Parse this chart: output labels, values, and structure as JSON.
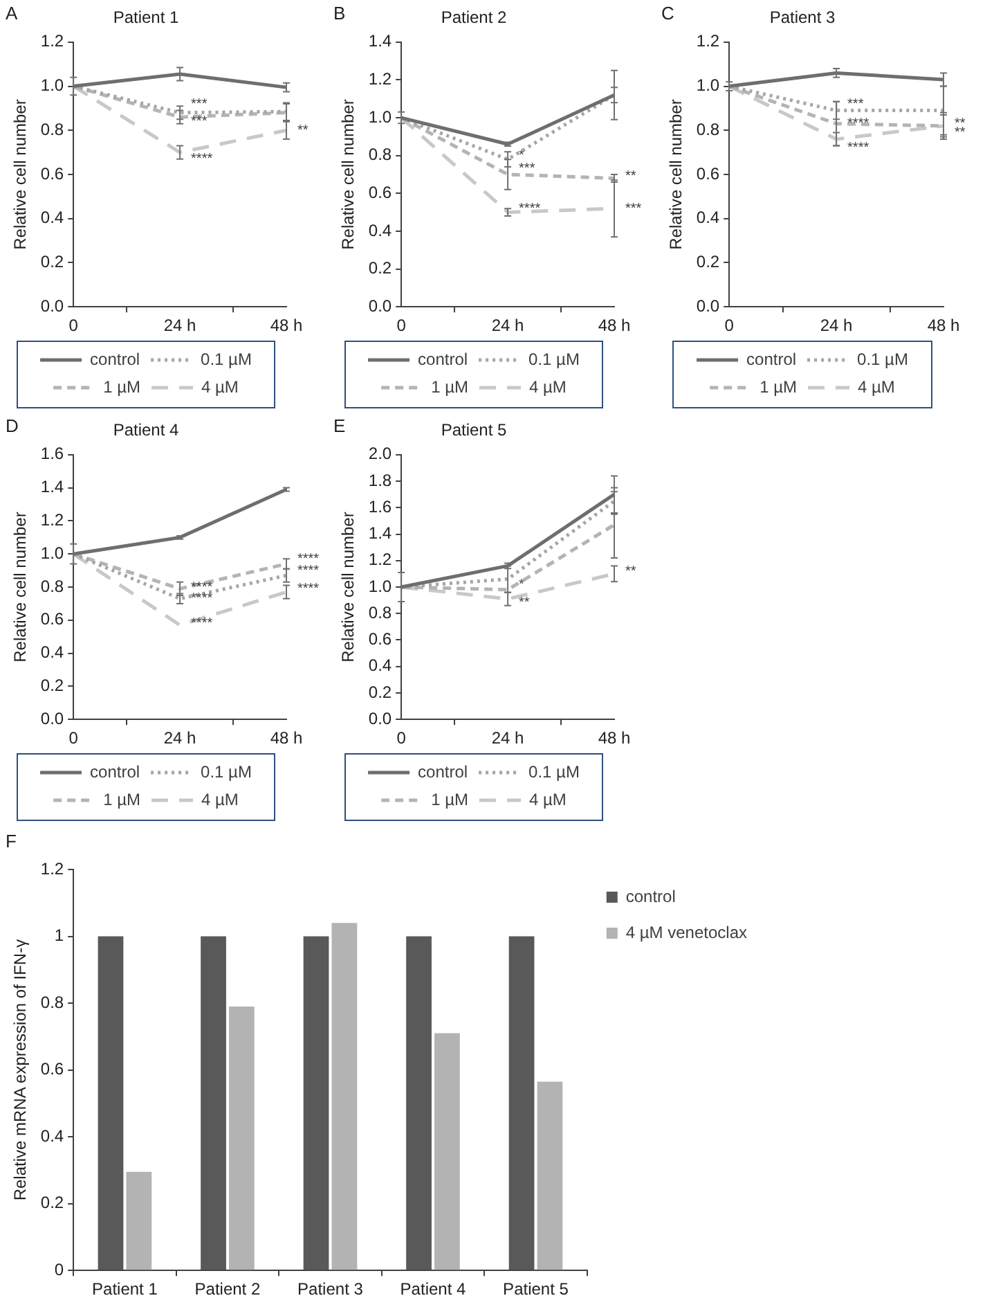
{
  "chart_data": [
    {
      "type": "line",
      "title": "Patient 1",
      "ylabel": "Relative cell number",
      "annotations": [
        "A",
        {
          "text": "***",
          "x": "24 h",
          "y": 0.92
        },
        {
          "text": "***",
          "x": "24 h",
          "y": 0.84
        },
        {
          "text": "****",
          "x": "24 h",
          "y": 0.67
        },
        {
          "text": "**",
          "x": "48 h",
          "y": 0.8
        }
      ],
      "categories": [
        "0",
        "24 h",
        "48 h"
      ],
      "series": [
        {
          "name": "control",
          "color": "#6e6e6e",
          "line_style": "solid",
          "values": [
            1.0,
            1.055,
            0.995
          ],
          "errors": [
            0.04,
            0.03,
            0.02
          ]
        },
        {
          "name": "0.1 µM",
          "color": "#a6a6a6",
          "line_style": "dotted",
          "values": [
            1.0,
            0.88,
            0.885
          ],
          "errors": [
            null,
            0.03,
            0.04
          ]
        },
        {
          "name": "1 µM",
          "color": "#b4b4b4",
          "line_style": "dashed",
          "values": [
            1.0,
            0.86,
            0.88
          ],
          "errors": [
            null,
            0.03,
            0.04
          ]
        },
        {
          "name": "4 µM",
          "color": "#c8c8c8",
          "line_style": "longdash",
          "values": [
            1.0,
            0.7,
            0.8
          ],
          "errors": [
            null,
            0.03,
            0.04
          ]
        }
      ],
      "ylim": [
        0,
        1.2
      ],
      "yticks": [
        {
          "value": 0,
          "label": "0.0"
        },
        {
          "value": 0.2,
          "label": "0.2"
        },
        {
          "value": 0.4,
          "label": "0.4"
        },
        {
          "value": 0.6,
          "label": "0.6"
        },
        {
          "value": 0.8,
          "label": "0.8"
        },
        {
          "value": 1,
          "label": "1.0"
        },
        {
          "value": 1.2,
          "label": "1.2"
        }
      ],
      "legend": "bottom"
    },
    {
      "type": "line",
      "title": "Patient 2",
      "ylabel": "Relative cell number",
      "annotations": [
        "B",
        {
          "text": "*",
          "x": "24 h",
          "y": 0.8
        },
        {
          "text": "***",
          "x": "24 h",
          "y": 0.73
        },
        {
          "text": "****",
          "x": "24 h",
          "y": 0.52
        },
        {
          "text": "**",
          "x": "48 h",
          "y": 0.69
        },
        {
          "text": "***",
          "x": "48 h",
          "y": 0.52
        }
      ],
      "categories": [
        "0",
        "24 h",
        "48 h"
      ],
      "series": [
        {
          "name": "control",
          "color": "#6e6e6e",
          "line_style": "solid",
          "values": [
            1.0,
            0.86,
            1.12
          ],
          "errors": [
            0.03,
            0.01,
            0.13
          ]
        },
        {
          "name": "0.1 µM",
          "color": "#a6a6a6",
          "line_style": "dotted",
          "values": [
            1.0,
            0.78,
            1.12
          ],
          "errors": [
            null,
            0.04,
            0.04
          ]
        },
        {
          "name": "1 µM",
          "color": "#b4b4b4",
          "line_style": "dashed",
          "values": [
            1.0,
            0.7,
            0.68
          ],
          "errors": [
            null,
            0.08,
            0.02
          ]
        },
        {
          "name": "4 µM",
          "color": "#c8c8c8",
          "line_style": "longdash",
          "values": [
            1.0,
            0.5,
            0.52
          ],
          "errors": [
            null,
            0.02,
            0.15
          ]
        }
      ],
      "ylim": [
        0,
        1.4
      ],
      "yticks": [
        {
          "value": 0,
          "label": "0.0"
        },
        {
          "value": 0.2,
          "label": "0.2"
        },
        {
          "value": 0.4,
          "label": "0.4"
        },
        {
          "value": 0.6,
          "label": "0.6"
        },
        {
          "value": 0.8,
          "label": "0.8"
        },
        {
          "value": 1,
          "label": "1.0"
        },
        {
          "value": 1.2,
          "label": "1.2"
        },
        {
          "value": 1.4,
          "label": "1.4"
        }
      ],
      "legend": "bottom"
    },
    {
      "type": "line",
      "title": "Patient 3",
      "ylabel": "Relative cell number",
      "annotations": [
        "C",
        {
          "text": "***",
          "x": "24 h",
          "y": 0.92
        },
        {
          "text": "****",
          "x": "24 h",
          "y": 0.83
        },
        {
          "text": "****",
          "x": "24 h",
          "y": 0.72
        },
        {
          "text": "**",
          "x": "48 h",
          "y": 0.83
        },
        {
          "text": "**",
          "x": "48 h",
          "y": 0.79
        }
      ],
      "categories": [
        "0",
        "24 h",
        "48 h"
      ],
      "series": [
        {
          "name": "control",
          "color": "#6e6e6e",
          "line_style": "solid",
          "values": [
            1.0,
            1.06,
            1.03
          ],
          "errors": [
            0.02,
            0.02,
            0.03
          ]
        },
        {
          "name": "0.1 µM",
          "color": "#a6a6a6",
          "line_style": "dotted",
          "values": [
            1.0,
            0.89,
            0.89
          ],
          "errors": [
            null,
            0.04,
            0.11
          ]
        },
        {
          "name": "1 µM",
          "color": "#b4b4b4",
          "line_style": "dashed",
          "values": [
            1.0,
            0.83,
            0.82
          ],
          "errors": [
            null,
            0.1,
            0.06
          ]
        },
        {
          "name": "4 µM",
          "color": "#c8c8c8",
          "line_style": "longdash",
          "values": [
            1.0,
            0.76,
            0.82
          ],
          "errors": [
            null,
            0.03,
            0.05
          ]
        }
      ],
      "ylim": [
        0,
        1.2
      ],
      "yticks": [
        {
          "value": 0,
          "label": "0.0"
        },
        {
          "value": 0.2,
          "label": "0.2"
        },
        {
          "value": 0.4,
          "label": "0.4"
        },
        {
          "value": 0.6,
          "label": "0.6"
        },
        {
          "value": 0.8,
          "label": "0.8"
        },
        {
          "value": 1,
          "label": "1.0"
        },
        {
          "value": 1.2,
          "label": "1.2"
        }
      ],
      "legend": "bottom"
    },
    {
      "type": "line",
      "title": "Patient 4",
      "ylabel": "Relative cell number",
      "annotations": [
        "D",
        {
          "text": "****",
          "x": "24 h",
          "y": 0.8
        },
        {
          "text": "****",
          "x": "24 h",
          "y": 0.73
        },
        {
          "text": "****",
          "x": "24 h",
          "y": 0.58
        },
        {
          "text": "****",
          "x": "48 h",
          "y": 0.97
        },
        {
          "text": "****",
          "x": "48 h",
          "y": 0.9
        },
        {
          "text": "****",
          "x": "48 h",
          "y": 0.79
        }
      ],
      "categories": [
        "0",
        "24 h",
        "48 h"
      ],
      "series": [
        {
          "name": "control",
          "color": "#6e6e6e",
          "line_style": "solid",
          "values": [
            1.0,
            1.1,
            1.39
          ],
          "errors": [
            0.06,
            0.01,
            0.01
          ]
        },
        {
          "name": "0.1 µM",
          "color": "#a6a6a6",
          "line_style": "dotted",
          "values": [
            1.0,
            0.73,
            0.87
          ],
          "errors": [
            null,
            0.03,
            0.04
          ]
        },
        {
          "name": "1 µM",
          "color": "#b4b4b4",
          "line_style": "dashed",
          "values": [
            1.0,
            0.79,
            0.94
          ],
          "errors": [
            null,
            0.04,
            0.03
          ]
        },
        {
          "name": "4 µM",
          "color": "#c8c8c8",
          "line_style": "longdash",
          "values": [
            1.0,
            0.57,
            0.77
          ],
          "errors": [
            null,
            null,
            0.04
          ]
        }
      ],
      "ylim": [
        0,
        1.6
      ],
      "yticks": [
        {
          "value": 0,
          "label": "0.0"
        },
        {
          "value": 0.2,
          "label": "0.2"
        },
        {
          "value": 0.4,
          "label": "0.4"
        },
        {
          "value": 0.6,
          "label": "0.6"
        },
        {
          "value": 0.8,
          "label": "0.8"
        },
        {
          "value": 1,
          "label": "1.0"
        },
        {
          "value": 1.2,
          "label": "1.2"
        },
        {
          "value": 1.4,
          "label": "1.4"
        },
        {
          "value": 1.6,
          "label": "1.6"
        }
      ],
      "legend": "bottom"
    },
    {
      "type": "line",
      "title": "Patient 5",
      "ylabel": "Relative cell number",
      "annotations": [
        "E",
        {
          "text": "*",
          "x": "24 h",
          "y": 1.02
        },
        {
          "text": "**",
          "x": "24 h",
          "y": 0.88
        },
        {
          "text": "**",
          "x": "48 h",
          "y": 1.12
        }
      ],
      "categories": [
        "0",
        "24 h",
        "48 h"
      ],
      "series": [
        {
          "name": "control",
          "color": "#6e6e6e",
          "line_style": "solid",
          "values": [
            1.0,
            1.16,
            1.7
          ],
          "errors": [
            0.11,
            0.02,
            0.14
          ]
        },
        {
          "name": "0.1 µM",
          "color": "#a6a6a6",
          "line_style": "dotted",
          "values": [
            1.0,
            1.06,
            1.65
          ],
          "errors": [
            null,
            0.1,
            0.1
          ]
        },
        {
          "name": "1 µM",
          "color": "#b4b4b4",
          "line_style": "dashed",
          "values": [
            1.0,
            0.98,
            1.47
          ],
          "errors": [
            null,
            null,
            0.25
          ]
        },
        {
          "name": "4 µM",
          "color": "#c8c8c8",
          "line_style": "longdash",
          "values": [
            1.0,
            0.91,
            1.1
          ],
          "errors": [
            null,
            0.05,
            0.06
          ]
        }
      ],
      "ylim": [
        0,
        2.0
      ],
      "yticks": [
        {
          "value": 0,
          "label": "0.0"
        },
        {
          "value": 0.2,
          "label": "0.2"
        },
        {
          "value": 0.4,
          "label": "0.4"
        },
        {
          "value": 0.6,
          "label": "0.6"
        },
        {
          "value": 0.8,
          "label": "0.8"
        },
        {
          "value": 1,
          "label": "1.0"
        },
        {
          "value": 1.2,
          "label": "1.2"
        },
        {
          "value": 1.4,
          "label": "1.4"
        },
        {
          "value": 1.6,
          "label": "1.6"
        },
        {
          "value": 1.8,
          "label": "1.8"
        },
        {
          "value": 2,
          "label": "2.0"
        }
      ],
      "legend": "bottom"
    },
    {
      "type": "bar",
      "ylabel": "Relative mRNA expression of IFN-γ",
      "annotations": [
        "F"
      ],
      "categories": [
        "Patient 1",
        "Patient 2",
        "Patient 3",
        "Patient 4",
        "Patient 5"
      ],
      "series": [
        {
          "name": "control",
          "color": "#595959",
          "values": [
            1,
            1,
            1,
            1,
            1
          ]
        },
        {
          "name": "4 µM venetoclax",
          "color": "#b3b3b3",
          "values": [
            0.295,
            0.79,
            1.04,
            0.71,
            0.565
          ]
        }
      ],
      "ylim": [
        0,
        1.2
      ],
      "yticks": [
        0,
        0.2,
        0.4,
        0.6,
        0.8,
        1,
        1.2
      ],
      "legend": "right"
    }
  ]
}
